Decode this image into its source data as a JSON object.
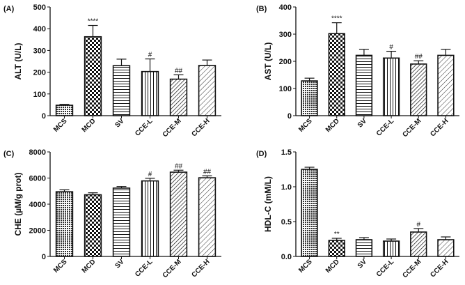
{
  "chart_data": [
    {
      "type": "bar",
      "panel_label": "(A)",
      "ylabel": "ALT (U/L)",
      "categories": [
        "MCS",
        "MCD",
        "SV",
        "CCE-L",
        "CCE-M",
        "CCE-H"
      ],
      "values": [
        48,
        363,
        230,
        203,
        168,
        231
      ],
      "errors": [
        4,
        52,
        30,
        58,
        20,
        25
      ],
      "annotations": [
        "",
        "****",
        "",
        "#",
        "##",
        ""
      ],
      "ylim": [
        0,
        500
      ],
      "yticks": [
        "0",
        "100",
        "200",
        "300",
        "400",
        "500"
      ],
      "patterns": [
        "dots",
        "checker",
        "hlines",
        "vlines",
        "diag",
        "diag2"
      ]
    },
    {
      "type": "bar",
      "panel_label": "(B)",
      "ylabel": "AST (U/L)",
      "categories": [
        "MCS",
        "MCD",
        "SV",
        "CCE-L",
        "CCE-M",
        "CCE-H"
      ],
      "values": [
        128,
        302,
        222,
        212,
        190,
        222
      ],
      "errors": [
        10,
        40,
        22,
        25,
        12,
        22
      ],
      "annotations": [
        "",
        "****",
        "",
        "#",
        "##",
        ""
      ],
      "ylim": [
        0,
        400
      ],
      "yticks": [
        "0",
        "100",
        "200",
        "300",
        "400"
      ],
      "patterns": [
        "dots",
        "checker",
        "hlines",
        "vlines",
        "diag",
        "diag2"
      ]
    },
    {
      "type": "bar",
      "panel_label": "(C)",
      "ylabel": "CHE (µM/g prot)",
      "categories": [
        "MCS",
        "MCD",
        "SV",
        "CCE-L",
        "CCE-M",
        "CCE-H"
      ],
      "values": [
        4950,
        4720,
        5230,
        5780,
        6450,
        6020
      ],
      "errors": [
        150,
        150,
        120,
        200,
        150,
        150
      ],
      "annotations": [
        "",
        "",
        "",
        "#",
        "##",
        "##"
      ],
      "ylim": [
        0,
        8000
      ],
      "yticks": [
        "0",
        "2000",
        "4000",
        "6000",
        "8000"
      ],
      "patterns": [
        "dots",
        "checker",
        "hlines",
        "vlines",
        "diag",
        "diag2"
      ]
    },
    {
      "type": "bar",
      "panel_label": "(D)",
      "ylabel": "HDL-C (mM/L)",
      "categories": [
        "MCS",
        "MCD",
        "SV",
        "CCE-L",
        "CCE-M",
        "CCE-H"
      ],
      "values": [
        1.25,
        0.23,
        0.24,
        0.22,
        0.35,
        0.24
      ],
      "errors": [
        0.03,
        0.03,
        0.03,
        0.03,
        0.05,
        0.04
      ],
      "annotations": [
        "",
        "**",
        "",
        "",
        "#",
        ""
      ],
      "ylim": [
        0,
        1.5
      ],
      "yticks": [
        "0.0",
        "0.5",
        "1.0",
        "1.5"
      ],
      "patterns": [
        "dots",
        "checker",
        "hlines",
        "vlines",
        "diag",
        "diag2"
      ]
    }
  ]
}
